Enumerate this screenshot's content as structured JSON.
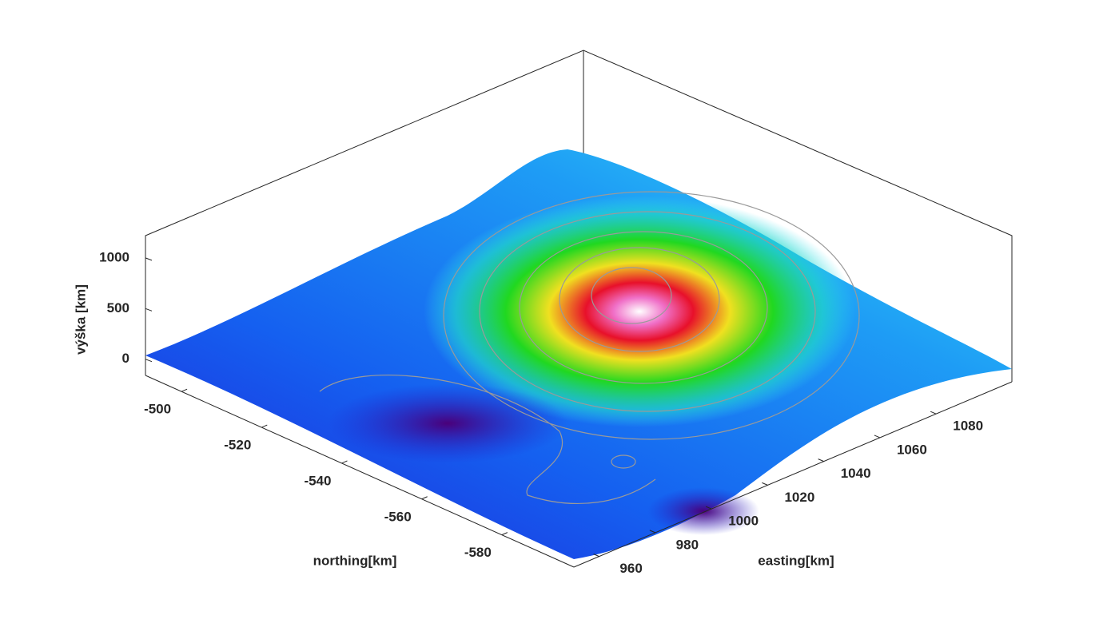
{
  "chart_data": {
    "type": "surface",
    "xlabel": "easting[km]",
    "ylabel": "northing[km]",
    "zlabel": "výška [km]",
    "xlim": [
      951,
      1107
    ],
    "xticks": [
      960,
      980,
      1000,
      1020,
      1040,
      1060,
      1080
    ],
    "ylim": [
      -598,
      -491
    ],
    "yticks": [
      -500,
      -520,
      -540,
      -560,
      -580
    ],
    "zlim": [
      -160,
      1220
    ],
    "zticks": [
      0,
      500,
      1000
    ]
  }
}
